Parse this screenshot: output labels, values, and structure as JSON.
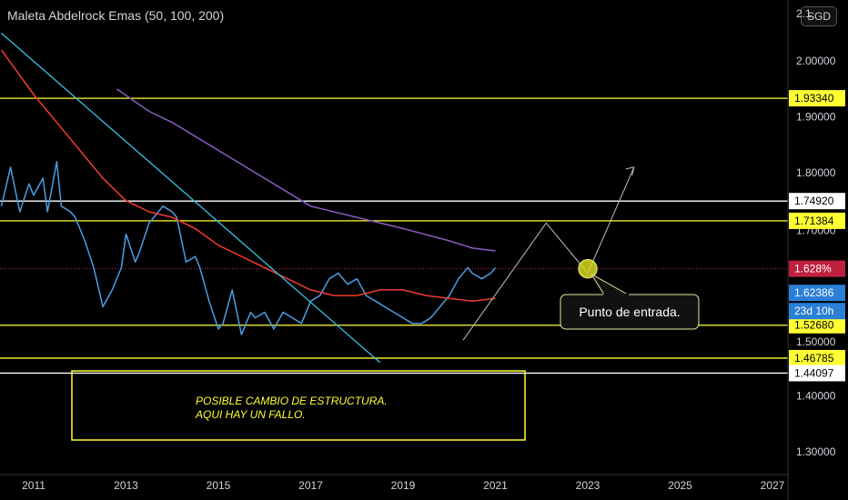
{
  "header": {
    "title": "Maleta Abdelrock Emas (50, 100, 200)",
    "currency": "SGD"
  },
  "colors": {
    "background": "#000000",
    "price": "#4a9ee6",
    "ema50": "#f23b30",
    "ema200": "#8a5cc2",
    "trendline": "#33c3e6",
    "yellow": "#ffff33",
    "white": "#ffffff",
    "projection": "#bfbfbf",
    "current_price_line": "#c02040"
  },
  "chart_data": {
    "type": "line",
    "x_ticks": [
      "2011",
      "2013",
      "2015",
      "2017",
      "2019",
      "2021",
      "2023",
      "2025",
      "2027"
    ],
    "y_ticks": [
      "2.00000",
      "1.90000",
      "1.80000",
      "1.40000",
      "1.30000"
    ],
    "y_top_partial_label": "2.1",
    "y_partial_label_1": "1.70000",
    "y_partial_label_2": "1.50000",
    "xlim": [
      2010.3,
      2027.5
    ],
    "ylim": [
      1.27,
      2.1
    ],
    "series": [
      {
        "key": "price",
        "x": [
          2010.3,
          2010.5,
          2010.7,
          2010.9,
          2011.0,
          2011.2,
          2011.3,
          2011.5,
          2011.6,
          2011.8,
          2011.9,
          2012.1,
          2012.3,
          2012.5,
          2012.7,
          2012.9,
          2013.0,
          2013.2,
          2013.3,
          2013.5,
          2013.7,
          2013.8,
          2014.0,
          2014.1,
          2014.3,
          2014.5,
          2014.6,
          2014.8,
          2015.0,
          2015.1,
          2015.3,
          2015.5,
          2015.7,
          2015.8,
          2016.0,
          2016.2,
          2016.4,
          2016.6,
          2016.8,
          2017.0,
          2017.2,
          2017.4,
          2017.6,
          2017.8,
          2018.0,
          2018.2,
          2018.4,
          2018.6,
          2018.8,
          2019.0,
          2019.2,
          2019.4,
          2019.6,
          2019.8,
          2020.0,
          2020.2,
          2020.4,
          2020.5,
          2020.7,
          2020.9,
          2021.0
        ],
        "y": [
          1.74,
          1.81,
          1.73,
          1.78,
          1.76,
          1.79,
          1.73,
          1.82,
          1.74,
          1.73,
          1.72,
          1.68,
          1.63,
          1.56,
          1.59,
          1.63,
          1.69,
          1.64,
          1.66,
          1.71,
          1.73,
          1.74,
          1.73,
          1.72,
          1.64,
          1.65,
          1.63,
          1.57,
          1.52,
          1.53,
          1.59,
          1.51,
          1.55,
          1.54,
          1.55,
          1.52,
          1.55,
          1.54,
          1.53,
          1.57,
          1.58,
          1.61,
          1.62,
          1.6,
          1.61,
          1.58,
          1.57,
          1.56,
          1.55,
          1.54,
          1.53,
          1.53,
          1.54,
          1.56,
          1.58,
          1.61,
          1.63,
          1.62,
          1.61,
          1.62,
          1.63
        ]
      },
      {
        "key": "ema50",
        "x": [
          2010.3,
          2011.0,
          2011.5,
          2012.0,
          2012.5,
          2013.0,
          2013.5,
          2014.0,
          2014.5,
          2015.0,
          2015.5,
          2016.0,
          2016.5,
          2017.0,
          2017.5,
          2018.0,
          2018.5,
          2019.0,
          2019.5,
          2020.0,
          2020.5,
          2021.0
        ],
        "y": [
          2.02,
          1.94,
          1.89,
          1.84,
          1.79,
          1.75,
          1.73,
          1.72,
          1.7,
          1.67,
          1.65,
          1.63,
          1.61,
          1.59,
          1.58,
          1.58,
          1.59,
          1.59,
          1.58,
          1.575,
          1.57,
          1.575
        ]
      },
      {
        "key": "ema200",
        "x": [
          2012.8,
          2013.5,
          2014.0,
          2015.0,
          2016.0,
          2017.0,
          2018.0,
          2019.0,
          2020.0,
          2020.5,
          2021.0
        ],
        "y": [
          1.95,
          1.91,
          1.89,
          1.84,
          1.79,
          1.74,
          1.72,
          1.7,
          1.678,
          1.665,
          1.66
        ]
      }
    ],
    "trendline": {
      "x": [
        2010.3,
        2018.5
      ],
      "y": [
        2.05,
        1.46
      ]
    },
    "projection": {
      "x": [
        2020.3,
        2022.1,
        2023.0,
        2024.0
      ],
      "y": [
        1.5,
        1.71,
        1.62,
        1.81
      ]
    },
    "horizontal_levels": [
      {
        "value": 1.9334,
        "label": "1.93340",
        "color": "yellow"
      },
      {
        "value": 1.7492,
        "label": "1.74920",
        "color": "white"
      },
      {
        "value": 1.71384,
        "label": "1.71384",
        "color": "yellow"
      },
      {
        "value": 1.5268,
        "label": "1.52680",
        "color": "yellow"
      },
      {
        "value": 1.46785,
        "label": "1.46785",
        "color": "yellow"
      },
      {
        "value": 1.44097,
        "label": "1.44097",
        "color": "white"
      }
    ],
    "current_price": {
      "value": 1.6238,
      "label": "1.62386",
      "countdown": "23d 10h",
      "percent_label": "1.628%",
      "percent_value": 1.628
    },
    "entry_point": {
      "x": 2023.0,
      "y": 1.628
    },
    "annotations": {
      "entry": "Punto de entrada.",
      "structure_line1": "POSIBLE CAMBIO DE ESTRUCTURA.",
      "structure_line2": "AQUI HAY UN FALLO."
    }
  }
}
